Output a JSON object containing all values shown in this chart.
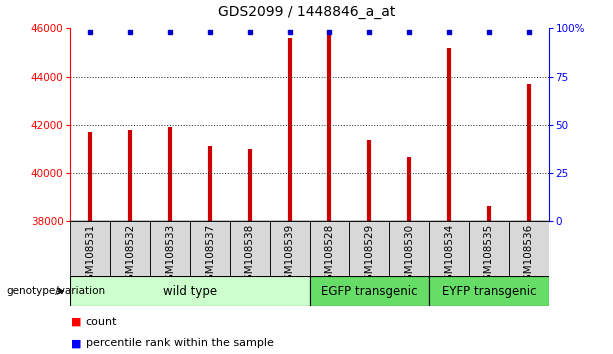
{
  "title": "GDS2099 / 1448846_a_at",
  "samples": [
    "GSM108531",
    "GSM108532",
    "GSM108533",
    "GSM108537",
    "GSM108538",
    "GSM108539",
    "GSM108528",
    "GSM108529",
    "GSM108530",
    "GSM108534",
    "GSM108535",
    "GSM108536"
  ],
  "counts": [
    41700,
    41800,
    41900,
    41100,
    41000,
    45600,
    45900,
    41350,
    40650,
    45200,
    38650,
    43700
  ],
  "bar_color": "#cc0000",
  "dot_color": "#0000cc",
  "ymin": 38000,
  "ymax": 46000,
  "yticks": [
    38000,
    40000,
    42000,
    44000,
    46000
  ],
  "right_yticks": [
    0,
    25,
    50,
    75,
    100
  ],
  "right_ylabels": [
    "0",
    "25",
    "50",
    "75",
    "100%"
  ],
  "grid_ticks": [
    40000,
    42000,
    44000
  ],
  "group_colors": [
    "#ccffcc",
    "#66dd66",
    "#66dd66"
  ],
  "group_ranges": [
    [
      0,
      6
    ],
    [
      6,
      9
    ],
    [
      9,
      12
    ]
  ],
  "group_labels": [
    "wild type",
    "EGFP transgenic",
    "EYFP transgenic"
  ],
  "title_fontsize": 10,
  "tick_fontsize": 7.5,
  "label_fontsize": 8.5,
  "group_fontsize": 8.5,
  "legend_fontsize": 8
}
